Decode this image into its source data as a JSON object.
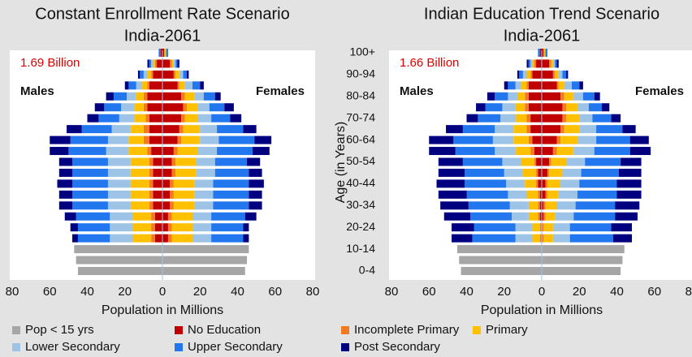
{
  "chart_data": [
    {
      "type": "pyramid",
      "title": "Constant Enrollment Rate Scenario",
      "subtitle": "India-2061",
      "annotation": "1.69 Billion",
      "left_label": "Males",
      "right_label": "Females",
      "xlabel": "Population in Millions",
      "xlim": [
        -80,
        80
      ],
      "xticks": [
        {
          "value": -80,
          "label": "80"
        },
        {
          "value": -60,
          "label": "60"
        },
        {
          "value": -40,
          "label": "40"
        },
        {
          "value": -20,
          "label": "20"
        },
        0,
        20,
        40,
        60,
        80
      ],
      "series": [
        {
          "males": [
            -45,
            -46,
            -47,
            0,
            0,
            0,
            0,
            0,
            0,
            0,
            0,
            0,
            0,
            0,
            0,
            0,
            0,
            0,
            0,
            0,
            0
          ],
          "females": [
            44,
            45,
            46,
            0,
            0,
            0,
            0,
            0,
            0,
            0,
            0,
            0,
            0,
            0,
            0,
            0,
            0,
            0,
            0,
            0,
            0
          ]
        },
        {
          "males": [
            0,
            0,
            0,
            -4,
            -4,
            -4,
            -5,
            -5,
            -5,
            -5,
            -5,
            -6,
            -7,
            -7,
            -7,
            -8,
            -8,
            -7,
            -5,
            -3,
            -1
          ],
          "females": [
            0,
            0,
            0,
            3,
            3,
            3,
            4,
            4,
            4,
            5,
            5,
            6,
            8,
            9,
            10,
            11,
            10,
            8,
            6,
            4,
            1
          ]
        },
        {
          "males": [
            0,
            0,
            0,
            -2,
            -2,
            -2,
            -2,
            -2,
            -2,
            -2,
            -2,
            -2,
            -3,
            -3,
            -2,
            -2,
            -2,
            -1,
            -1,
            -1,
            0
          ],
          "females": [
            0,
            0,
            0,
            2,
            2,
            2,
            2,
            2,
            2,
            2,
            2,
            2,
            2,
            2,
            2,
            2,
            2,
            1,
            1,
            1,
            0
          ]
        },
        {
          "males": [
            0,
            0,
            0,
            -10,
            -10,
            -10,
            -10,
            -10,
            -10,
            -10,
            -10,
            -10,
            -8,
            -7,
            -6,
            -5,
            -4,
            -3,
            -2,
            -1,
            0
          ],
          "females": [
            0,
            0,
            0,
            11,
            11,
            11,
            11,
            11,
            11,
            11,
            11,
            11,
            10,
            9,
            7,
            6,
            5,
            3,
            2,
            1,
            1
          ]
        },
        {
          "males": [
            0,
            0,
            0,
            -12,
            -12,
            -12,
            -12,
            -12,
            -12,
            -12,
            -12,
            -12,
            -11,
            -10,
            -8,
            -7,
            -5,
            -3,
            -2,
            -1,
            0
          ],
          "females": [
            0,
            0,
            0,
            10,
            10,
            10,
            10,
            10,
            10,
            10,
            10,
            10,
            10,
            9,
            7,
            6,
            5,
            4,
            2,
            1,
            0
          ]
        },
        {
          "males": [
            0,
            0,
            0,
            -17,
            -17,
            -18,
            -19,
            -19,
            -19,
            -19,
            -19,
            -20,
            -20,
            -16,
            -11,
            -9,
            -7,
            -4,
            -2,
            -1,
            -1
          ],
          "females": [
            0,
            0,
            0,
            17,
            17,
            18,
            19,
            19,
            19,
            18,
            17,
            19,
            19,
            14,
            10,
            8,
            6,
            4,
            2,
            1,
            1
          ]
        },
        {
          "males": [
            0,
            0,
            0,
            -3,
            -4,
            -6,
            -7,
            -7,
            -8,
            -7,
            -7,
            -10,
            -11,
            -8,
            -6,
            -5,
            -4,
            -2,
            -1,
            -1,
            0
          ],
          "females": [
            0,
            0,
            0,
            3,
            3,
            6,
            7,
            7,
            8,
            7,
            7,
            9,
            9,
            7,
            6,
            5,
            3,
            2,
            1,
            1,
            0
          ]
        }
      ]
    },
    {
      "type": "pyramid",
      "title": "Indian Education Trend Scenario",
      "subtitle": "India-2061",
      "annotation": "1.66 Billion",
      "left_label": "Males",
      "right_label": "Females",
      "xlabel": "Population in Millions",
      "ylabel": "Age (in Years)",
      "categories": [
        "0-4",
        null,
        "10-14",
        null,
        "20-24",
        null,
        "30-34",
        null,
        "40-44",
        null,
        "50-54",
        null,
        "60-64",
        null,
        "70-74",
        null,
        "80-84",
        null,
        "90-94",
        null,
        "100+"
      ],
      "xlim": [
        -80,
        80
      ],
      "xticks": [
        {
          "value": -80,
          "label": "80"
        },
        {
          "value": -60,
          "label": "60"
        },
        {
          "value": -40,
          "label": "40"
        },
        {
          "value": -20,
          "label": "20"
        },
        0,
        20,
        40,
        60,
        80
      ],
      "series": [
        {
          "males": [
            -43,
            -44,
            -45,
            0,
            0,
            0,
            0,
            0,
            0,
            0,
            0,
            0,
            0,
            0,
            0,
            0,
            0,
            0,
            0,
            0,
            0
          ],
          "females": [
            42,
            43,
            44,
            0,
            0,
            0,
            0,
            0,
            0,
            0,
            0,
            0,
            0,
            0,
            0,
            0,
            0,
            0,
            0,
            0,
            0
          ]
        },
        {
          "males": [
            0,
            0,
            0,
            0,
            0,
            -1,
            -1,
            -1,
            -2,
            -2,
            -3,
            -4,
            -5,
            -6,
            -6,
            -7,
            -7,
            -7,
            -5,
            -3,
            -1
          ],
          "females": [
            0,
            0,
            0,
            0,
            0,
            1,
            1,
            2,
            2,
            3,
            4,
            6,
            8,
            10,
            11,
            11,
            10,
            8,
            6,
            4,
            1
          ]
        },
        {
          "males": [
            0,
            0,
            0,
            -1,
            -1,
            -1,
            -1,
            -1,
            -1,
            -1,
            -1,
            -2,
            -2,
            -2,
            -2,
            -2,
            -2,
            -1,
            -1,
            -1,
            0
          ],
          "females": [
            0,
            0,
            0,
            1,
            1,
            1,
            1,
            1,
            1,
            1,
            1,
            2,
            2,
            2,
            2,
            2,
            2,
            1,
            1,
            1,
            0
          ]
        },
        {
          "males": [
            0,
            0,
            0,
            -4,
            -4,
            -5,
            -5,
            -6,
            -6,
            -7,
            -7,
            -8,
            -8,
            -7,
            -6,
            -5,
            -4,
            -3,
            -2,
            -1,
            0
          ],
          "females": [
            0,
            0,
            0,
            5,
            5,
            5,
            6,
            6,
            7,
            7,
            8,
            9,
            9,
            8,
            7,
            6,
            5,
            3,
            2,
            1,
            1
          ]
        },
        {
          "males": [
            0,
            0,
            0,
            -9,
            -9,
            -9,
            -10,
            -10,
            -10,
            -10,
            -10,
            -11,
            -11,
            -10,
            -8,
            -7,
            -5,
            -3,
            -2,
            -1,
            0
          ],
          "females": [
            0,
            0,
            0,
            9,
            9,
            10,
            10,
            10,
            10,
            10,
            10,
            11,
            10,
            9,
            7,
            6,
            5,
            4,
            2,
            1,
            0
          ]
        },
        {
          "males": [
            0,
            0,
            0,
            -23,
            -22,
            -22,
            -22,
            -22,
            -22,
            -21,
            -21,
            -21,
            -21,
            -17,
            -12,
            -9,
            -7,
            -4,
            -2,
            -1,
            -1
          ],
          "females": [
            0,
            0,
            0,
            23,
            22,
            22,
            21,
            21,
            20,
            20,
            19,
            19,
            18,
            14,
            10,
            7,
            6,
            4,
            2,
            1,
            1
          ]
        },
        {
          "males": [
            0,
            0,
            0,
            -11,
            -12,
            -14,
            -15,
            -15,
            -15,
            -14,
            -13,
            -14,
            -13,
            -9,
            -6,
            -5,
            -4,
            -2,
            -1,
            -1,
            0
          ],
          "females": [
            0,
            0,
            0,
            10,
            11,
            12,
            13,
            13,
            13,
            12,
            11,
            11,
            10,
            7,
            5,
            4,
            3,
            2,
            1,
            1,
            0
          ]
        }
      ]
    }
  ],
  "legend": [
    {
      "name": "Pop < 15 yrs",
      "color": "#a6a6a6"
    },
    {
      "name": "No Education",
      "color": "#c00000"
    },
    {
      "name": "Incomplete Primary",
      "color": "#f47a20"
    },
    {
      "name": "Primary",
      "color": "#ffc000"
    },
    {
      "name": "Lower Secondary",
      "color": "#9dc3e6"
    },
    {
      "name": "Upper Secondary",
      "color": "#2277ee"
    },
    {
      "name": "Post Secondary",
      "color": "#000080"
    }
  ]
}
